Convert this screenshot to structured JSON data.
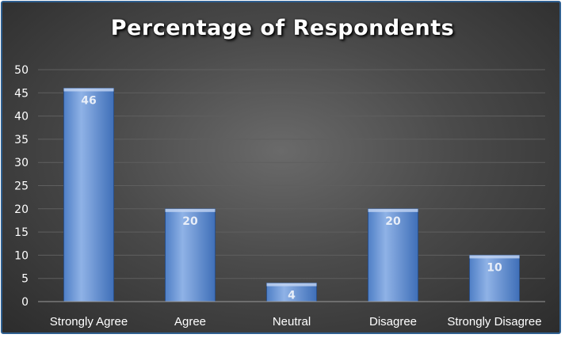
{
  "chart_data": {
    "type": "bar",
    "title": "Percentage of Respondents",
    "categories": [
      "Strongly Agree",
      "Agree",
      "Neutral",
      "Disagree",
      "Strongly Disagree"
    ],
    "values": [
      46,
      20,
      4,
      20,
      10
    ],
    "data_labels": [
      "46",
      "20",
      "4",
      "20",
      "10"
    ],
    "ylim": [
      0,
      50
    ],
    "yticks": [
      0,
      5,
      10,
      15,
      20,
      25,
      30,
      35,
      40,
      45,
      50
    ],
    "grid": true,
    "legend": "none",
    "colors": {
      "bar_top": "#8fb2e6",
      "bar_bottom": "#3f6fb8",
      "bar_edge": "#2b4f86",
      "grid": "#5f5f5f",
      "axis": "#9a9a9a"
    }
  }
}
